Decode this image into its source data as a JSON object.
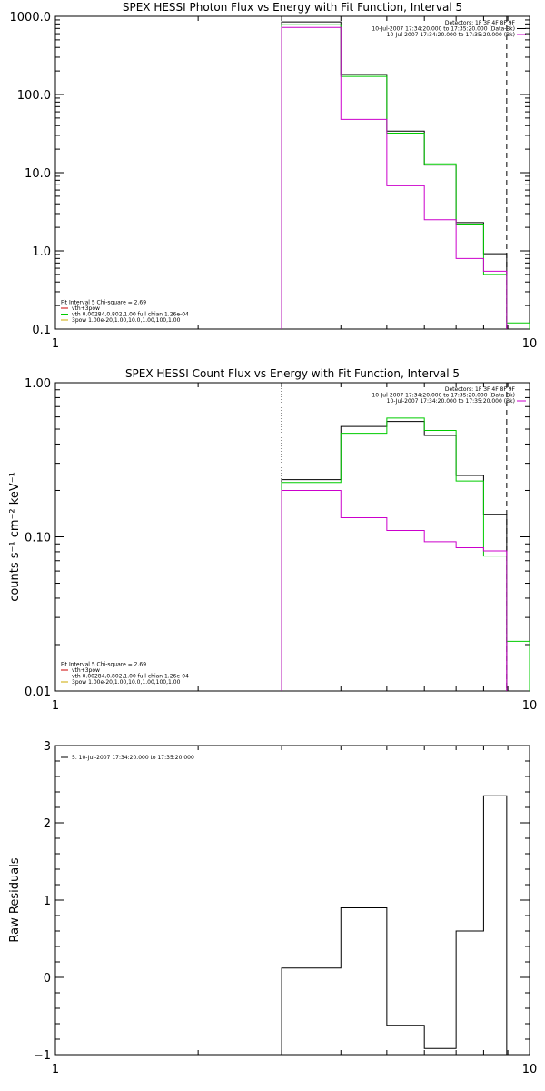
{
  "chart_data": [
    {
      "type": "line",
      "step": true,
      "title": "SPEX HESSI Photon Flux vs Energy with Fit Function, Interval 5",
      "xlabel": "",
      "ylabel": "",
      "xscale": "log",
      "yscale": "log",
      "xlim": [
        1,
        10
      ],
      "ylim": [
        0.1,
        1000
      ],
      "xticks": [
        "1",
        "10"
      ],
      "yticks": [
        "0.1",
        "1.0",
        "10.0",
        "100.0",
        "1000.0"
      ],
      "legend_top": {
        "placement": "top-right",
        "lines": [
          {
            "text": "Detectors: 1F 3F 4F 8F 9F",
            "color": ""
          },
          {
            "text": "10-Jul-2007 17:34:20.000 to 17:35:20.000 (Data-Bk)",
            "color": "#000000"
          },
          {
            "text": "10-Jul-2007 17:34:20.000 to 17:35:20.000 (Bk)",
            "color": "#cc00cc"
          }
        ]
      },
      "legend_bottom": {
        "placement": "bottom-left",
        "lines": [
          {
            "text": "Fit Interval 5   Chi-square = 2.69",
            "color": ""
          },
          {
            "text": "vth+3pow",
            "color": "#cc0000"
          },
          {
            "text": "vth 0.00284,0.802,1.00  full chian 1.26e-04",
            "color": "#00cc00"
          },
          {
            "text": "3pow 1.00e-20,1.00,10.0,1.00,100,1.00",
            "color": "#ccaa00"
          }
        ]
      },
      "vlines": [
        {
          "x": 3.0,
          "style": "dotted"
        },
        {
          "x": 8.95,
          "style": "dashed"
        }
      ],
      "series": [
        {
          "color": "#000000",
          "edges": [
            3.0,
            4.0,
            5.0,
            6.0,
            7.0,
            8.0,
            8.95
          ],
          "values": [
            850,
            180,
            34,
            12.5,
            2.3,
            0.92
          ]
        },
        {
          "color": "#00cc00",
          "edges": [
            3.0,
            4.0,
            5.0,
            6.0,
            7.0,
            8.0,
            8.95,
            10.0
          ],
          "values": [
            780,
            170,
            32,
            13,
            2.2,
            0.5,
            0.12
          ]
        },
        {
          "color": "#cc00cc",
          "edges": [
            3.0,
            4.0,
            5.0,
            6.0,
            7.0,
            8.0,
            8.95
          ],
          "values": [
            720,
            48,
            6.8,
            2.5,
            0.8,
            0.55
          ]
        }
      ]
    },
    {
      "type": "line",
      "step": true,
      "title": "SPEX HESSI Count Flux vs Energy with Fit Function, Interval 5",
      "xlabel": "",
      "ylabel": "counts s⁻¹ cm⁻² keV⁻¹",
      "xscale": "log",
      "yscale": "log",
      "xlim": [
        1,
        10
      ],
      "ylim": [
        0.01,
        1.0
      ],
      "xticks": [
        "1",
        "10"
      ],
      "yticks": [
        "0.01",
        "0.10",
        "1.00"
      ],
      "legend_top": {
        "placement": "top-right",
        "lines": [
          {
            "text": "Detectors: 1F 3F 4F 8F 9F",
            "color": ""
          },
          {
            "text": "10-Jul-2007 17:34:20.000 to 17:35:20.000 (Data-Bk)",
            "color": "#000000"
          },
          {
            "text": "10-Jul-2007 17:34:20.000 to 17:35:20.000 (Bk)",
            "color": "#cc00cc"
          }
        ]
      },
      "legend_bottom": {
        "placement": "bottom-left",
        "lines": [
          {
            "text": "Fit Interval 5   Chi-square = 2.69",
            "color": ""
          },
          {
            "text": "vth+3pow",
            "color": "#cc0000"
          },
          {
            "text": "vth 0.00284,0.802,1.00  full chian 1.26e-04",
            "color": "#00cc00"
          },
          {
            "text": "3pow 1.00e-20,1.00,10.0,1.00,100,1.00",
            "color": "#ccaa00"
          }
        ]
      },
      "vlines": [
        {
          "x": 3.0,
          "style": "dotted"
        },
        {
          "x": 8.95,
          "style": "dashed"
        }
      ],
      "series": [
        {
          "color": "#000000",
          "edges": [
            3.0,
            4.0,
            5.0,
            6.0,
            7.0,
            8.0,
            8.95
          ],
          "values": [
            0.235,
            0.52,
            0.56,
            0.455,
            0.25,
            0.14
          ]
        },
        {
          "color": "#00cc00",
          "edges": [
            3.0,
            4.0,
            5.0,
            6.0,
            7.0,
            8.0,
            8.95,
            10.0
          ],
          "values": [
            0.225,
            0.47,
            0.59,
            0.49,
            0.23,
            0.075,
            0.021
          ]
        },
        {
          "color": "#cc00cc",
          "edges": [
            3.0,
            4.0,
            5.0,
            6.0,
            7.0,
            8.0,
            8.95
          ],
          "values": [
            0.2,
            0.133,
            0.11,
            0.093,
            0.085,
            0.081
          ]
        }
      ]
    },
    {
      "type": "line",
      "step": true,
      "title": "",
      "xlabel": "",
      "ylabel": "Raw Residuals",
      "xscale": "log",
      "yscale": "linear",
      "xlim": [
        1,
        10
      ],
      "ylim": [
        -1,
        3
      ],
      "xticks": [
        "1",
        "10"
      ],
      "yticks": [
        "−1",
        "0",
        "1",
        "2",
        "3"
      ],
      "legend_top": {
        "placement": "top-left",
        "lines": [
          {
            "text": "5. 10-Jul-2007 17:34:20.000 to 17:35:20.000",
            "color": "#000000"
          }
        ]
      },
      "vlines": [],
      "series": [
        {
          "color": "#000000",
          "edges": [
            3.0,
            4.0,
            5.0,
            6.0,
            7.0,
            8.0,
            8.95
          ],
          "values": [
            0.12,
            0.9,
            -0.62,
            -0.92,
            0.6,
            2.35
          ]
        }
      ]
    }
  ]
}
